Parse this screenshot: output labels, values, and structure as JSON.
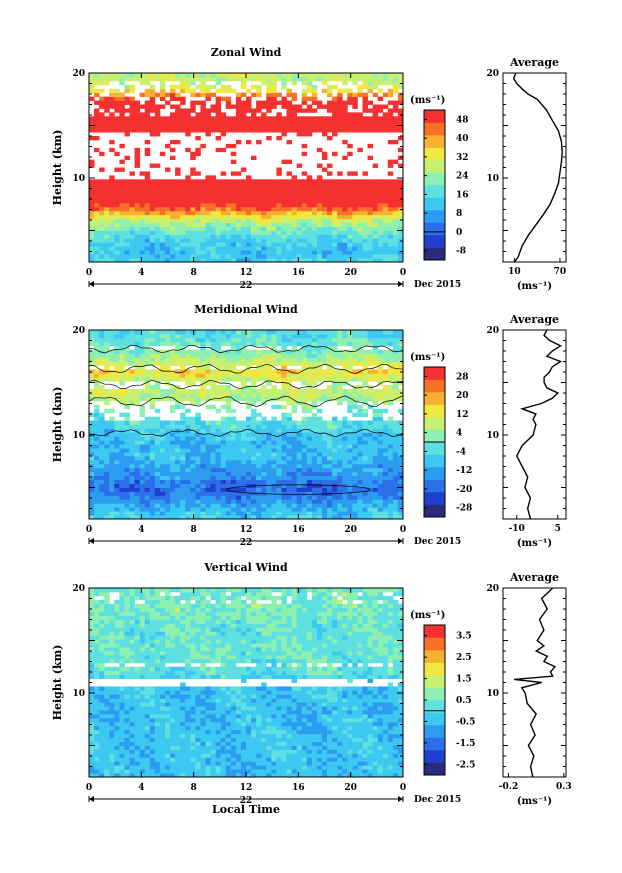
{
  "figure": {
    "date_label": "Dec 2015",
    "day_label": "22",
    "x_axis_title": "Local Time"
  },
  "colormap": [
    "#2b2b7e",
    "#1f3fd0",
    "#2c6fe8",
    "#2d9cf0",
    "#3cc8f0",
    "#5ee0e0",
    "#8ef0b0",
    "#c8f070",
    "#f0e840",
    "#f8b030",
    "#f87028",
    "#f43030"
  ],
  "chart_data": [
    {
      "type": "heatmap",
      "title": "Zonal Wind",
      "xlabel": "",
      "ylabel": "Height (km)",
      "x_ticks": [
        "0",
        "4",
        "8",
        "12",
        "16",
        "20",
        "0"
      ],
      "xlim": [
        0,
        24
      ],
      "ylim": [
        2,
        20
      ],
      "y_ticks": [
        10,
        20
      ],
      "colorbar_unit": "(ms⁻¹)",
      "colorbar_ticks": [
        "-8",
        "0",
        "8",
        "16",
        "24",
        "32",
        "40",
        "48"
      ],
      "colorbar_range": [
        -12,
        52
      ],
      "contour": false,
      "field_profile": [
        [
          2,
          14
        ],
        [
          3,
          11
        ],
        [
          4,
          14
        ],
        [
          5,
          20
        ],
        [
          6,
          28
        ],
        [
          7,
          44
        ],
        [
          8,
          54
        ],
        [
          11,
          56
        ],
        [
          12,
          60
        ],
        [
          15,
          60
        ],
        [
          16,
          56
        ],
        [
          17.3,
          54
        ],
        [
          18,
          40
        ],
        [
          18.6,
          30
        ],
        [
          19.2,
          28
        ],
        [
          20,
          28
        ]
      ],
      "gaps": [
        [
          9.8,
          14.2,
          0.85
        ],
        [
          15.8,
          16.3,
          0.5
        ],
        [
          17.4,
          19.2,
          0.45
        ],
        [
          11.2,
          12.8,
          0.3
        ],
        [
          15.8,
          17.4,
          0.25
        ]
      ],
      "average": {
        "title": "Average",
        "unit": "(ms⁻¹)",
        "x_ticks": [
          "10",
          "70"
        ],
        "xlim": [
          -5,
          78
        ],
        "profile": [
          [
            2.0,
            10
          ],
          [
            2.5,
            15
          ],
          [
            3.5,
            20
          ],
          [
            4.5,
            28
          ],
          [
            5.5,
            38
          ],
          [
            6.5,
            48
          ],
          [
            7.5,
            57
          ],
          [
            8.5,
            63
          ],
          [
            9.5,
            68
          ],
          [
            10.5,
            70
          ],
          [
            11.5,
            72
          ],
          [
            12.5,
            73
          ],
          [
            13.5,
            72
          ],
          [
            14.5,
            68
          ],
          [
            15.5,
            60
          ],
          [
            16.5,
            52
          ],
          [
            17.5,
            40
          ],
          [
            18.0,
            28
          ],
          [
            18.5,
            20
          ],
          [
            19.0,
            13
          ],
          [
            19.5,
            9
          ],
          [
            20.0,
            12
          ]
        ]
      }
    },
    {
      "type": "heatmap",
      "title": "Meridional Wind",
      "xlabel": "",
      "ylabel": "Height (km)",
      "x_ticks": [
        "0",
        "4",
        "8",
        "12",
        "16",
        "20",
        "0"
      ],
      "xlim": [
        0,
        24
      ],
      "ylim": [
        2,
        20
      ],
      "y_ticks": [
        10,
        20
      ],
      "colorbar_unit": "(ms⁻¹)",
      "colorbar_ticks": [
        "-28",
        "-20",
        "-12",
        "-4",
        "4",
        "12",
        "20",
        "28"
      ],
      "colorbar_range": [
        -32,
        32
      ],
      "contour": true,
      "field_profile": [
        [
          2,
          -6
        ],
        [
          3,
          -10
        ],
        [
          4,
          -16
        ],
        [
          5,
          -20
        ],
        [
          6,
          -14
        ],
        [
          7,
          -12
        ],
        [
          8,
          -8
        ],
        [
          9,
          -10
        ],
        [
          10,
          -8
        ],
        [
          11,
          -4
        ],
        [
          12,
          -2
        ],
        [
          13,
          4
        ],
        [
          14,
          8
        ],
        [
          15,
          6
        ],
        [
          16,
          14
        ],
        [
          17,
          8
        ],
        [
          18,
          2
        ],
        [
          19,
          -2
        ],
        [
          20,
          -4
        ]
      ],
      "gaps": [
        [
          11.2,
          13.2,
          0.6
        ],
        [
          14.5,
          15.0,
          0.5
        ],
        [
          16.2,
          16.7,
          0.45
        ],
        [
          18.0,
          18.6,
          0.4
        ]
      ],
      "average": {
        "title": "Average",
        "unit": "(ms⁻¹)",
        "x_ticks": [
          "-10",
          "5"
        ],
        "xlim": [
          -15,
          8
        ],
        "profile": [
          [
            2.0,
            -5
          ],
          [
            3.0,
            -6
          ],
          [
            4.0,
            -5
          ],
          [
            5.0,
            -7
          ],
          [
            6.0,
            -6
          ],
          [
            7.0,
            -8
          ],
          [
            8.0,
            -10
          ],
          [
            8.5,
            -9
          ],
          [
            9.0,
            -8
          ],
          [
            9.5,
            -6
          ],
          [
            10.0,
            -4
          ],
          [
            11.0,
            -3
          ],
          [
            11.5,
            -4
          ],
          [
            12.0,
            -3
          ],
          [
            12.5,
            -8
          ],
          [
            13.0,
            -1
          ],
          [
            13.5,
            3
          ],
          [
            14.0,
            5
          ],
          [
            14.5,
            1
          ],
          [
            15.0,
            0
          ],
          [
            15.5,
            0
          ],
          [
            16.0,
            2
          ],
          [
            16.5,
            3
          ],
          [
            17.0,
            6
          ],
          [
            17.5,
            1
          ],
          [
            18.0,
            3
          ],
          [
            18.5,
            6
          ],
          [
            19.0,
            2
          ],
          [
            19.5,
            0
          ],
          [
            20.0,
            1
          ]
        ]
      }
    },
    {
      "type": "heatmap",
      "title": "Vertical Wind",
      "xlabel": "Local Time",
      "ylabel": "Height (km)",
      "x_ticks": [
        "0",
        "4",
        "8",
        "12",
        "16",
        "20",
        "0"
      ],
      "xlim": [
        0,
        24
      ],
      "ylim": [
        2,
        20
      ],
      "y_ticks": [
        10,
        20
      ],
      "colorbar_unit": "(ms⁻¹)",
      "colorbar_ticks": [
        "-2.5",
        "-1.5",
        "-0.5",
        "0.5",
        "1.5",
        "2.5",
        "3.5"
      ],
      "colorbar_range": [
        -3.0,
        4.0
      ],
      "contour": false,
      "field_profile": [
        [
          2,
          -0.5
        ],
        [
          4,
          -0.4
        ],
        [
          6,
          -0.4
        ],
        [
          8,
          -0.5
        ],
        [
          10,
          -0.4
        ],
        [
          11,
          -0.3
        ],
        [
          12,
          0.2
        ],
        [
          14,
          0.4
        ],
        [
          16,
          0.3
        ],
        [
          18,
          0.6
        ],
        [
          20,
          0.5
        ]
      ],
      "gaps": [
        [
          10.5,
          11.3,
          0.95
        ],
        [
          12.6,
          13.0,
          0.5
        ],
        [
          18.5,
          19.5,
          0.2
        ]
      ],
      "average": {
        "title": "Average",
        "unit": "(ms⁻¹)",
        "x_ticks": [
          "-0.2",
          "0.3"
        ],
        "xlim": [
          -0.25,
          0.32
        ],
        "profile": [
          [
            2.0,
            0.02
          ],
          [
            3.0,
            0.0
          ],
          [
            4.0,
            0.03
          ],
          [
            5.0,
            -0.02
          ],
          [
            6.0,
            0.04
          ],
          [
            7.0,
            0.0
          ],
          [
            8.0,
            0.05
          ],
          [
            9.0,
            -0.03
          ],
          [
            10.0,
            -0.05
          ],
          [
            10.5,
            -0.08
          ],
          [
            11.0,
            0.1
          ],
          [
            11.3,
            -0.15
          ],
          [
            11.6,
            0.2
          ],
          [
            12.0,
            0.18
          ],
          [
            12.5,
            0.22
          ],
          [
            13.0,
            0.12
          ],
          [
            13.5,
            0.15
          ],
          [
            14.0,
            0.05
          ],
          [
            14.5,
            0.12
          ],
          [
            15.0,
            0.06
          ],
          [
            16.0,
            0.12
          ],
          [
            17.0,
            0.08
          ],
          [
            18.0,
            0.15
          ],
          [
            19.0,
            0.1
          ],
          [
            20.0,
            0.2
          ]
        ]
      }
    }
  ]
}
